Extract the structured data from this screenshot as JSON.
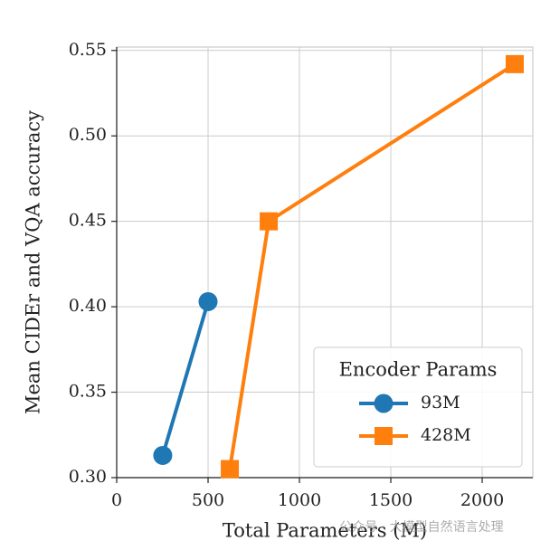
{
  "chart_data": {
    "type": "line",
    "xlabel": "Total Parameters (M)",
    "ylabel": "Mean CIDEr and VQA accuracy",
    "xlim": [
      0,
      2277
    ],
    "ylim": [
      0.3,
      0.552
    ],
    "xticks": [
      0,
      500,
      1000,
      1500,
      2000
    ],
    "yticks": [
      {
        "value": 0.3,
        "label": "0.30"
      },
      0.35,
      {
        "value": 0.4,
        "label": "0.40"
      },
      0.45,
      {
        "value": 0.5,
        "label": "0.50"
      },
      0.55
    ],
    "grid": true,
    "legend": {
      "title": "Encoder Params",
      "position": "lower right"
    },
    "series": [
      {
        "name": "93M",
        "color": "#1f77b4",
        "marker": "circle",
        "x": [
          252,
          500
        ],
        "values": [
          0.313,
          0.403
        ]
      },
      {
        "name": "428M",
        "color": "#ff7f0e",
        "marker": "square",
        "x": [
          619,
          832,
          2178
        ],
        "values": [
          0.305,
          0.45,
          0.542
        ]
      }
    ],
    "watermark": "公众号 · 大模型自然语言处理"
  }
}
